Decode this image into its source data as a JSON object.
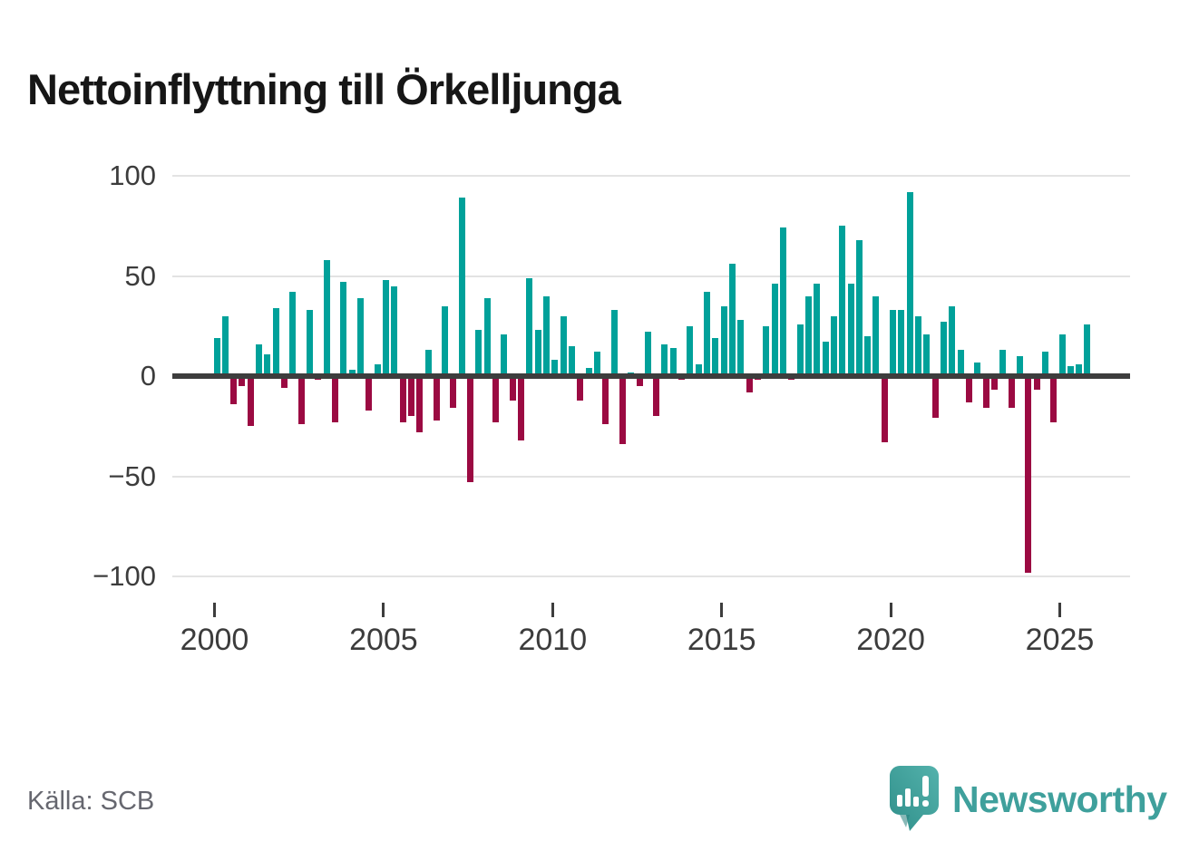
{
  "title": "Nettoinflyttning till Örkelljunga",
  "source_note": "Källa: SCB",
  "branding": {
    "logo_text": "Newsworthy"
  },
  "chart_data": {
    "type": "bar",
    "title": "Nettoinflyttning till Örkelljunga",
    "frequency": "quarterly",
    "start_period": "2000 Q1",
    "end_period": "2025 Q4",
    "x_tick_labels": [
      "2000",
      "2005",
      "2010",
      "2015",
      "2020",
      "2025"
    ],
    "y_tick_labels": [
      "100",
      "50",
      "0",
      "−50",
      "−100"
    ],
    "y_tick_values": [
      100,
      50,
      0,
      -50,
      -100
    ],
    "ylim": [
      -100,
      100
    ],
    "grid": "horizontal",
    "legend": "none",
    "colors": {
      "positive": "#00a19a",
      "negative": "#9b0a42"
    },
    "values": [
      19,
      30,
      -14,
      -5,
      -25,
      16,
      11,
      34,
      -6,
      42,
      -24,
      33,
      -2,
      58,
      -23,
      47,
      3,
      39,
      -17,
      6,
      48,
      45,
      -23,
      -20,
      -28,
      13,
      -22,
      35,
      -16,
      89,
      -53,
      23,
      39,
      -23,
      21,
      -12,
      -32,
      49,
      23,
      40,
      8,
      30,
      15,
      -12,
      4,
      12,
      -24,
      33,
      -34,
      2,
      -5,
      22,
      -20,
      16,
      14,
      -2,
      25,
      6,
      42,
      19,
      35,
      56,
      28,
      -8,
      -2,
      25,
      46,
      74,
      -2,
      26,
      40,
      46,
      17,
      30,
      75,
      46,
      68,
      20,
      40,
      -33,
      33,
      33,
      92,
      30,
      21,
      -21,
      27,
      35,
      13,
      -13,
      7,
      -16,
      -7,
      13,
      -16,
      10,
      -98,
      -7,
      12,
      -23,
      21,
      5,
      6,
      26
    ]
  }
}
